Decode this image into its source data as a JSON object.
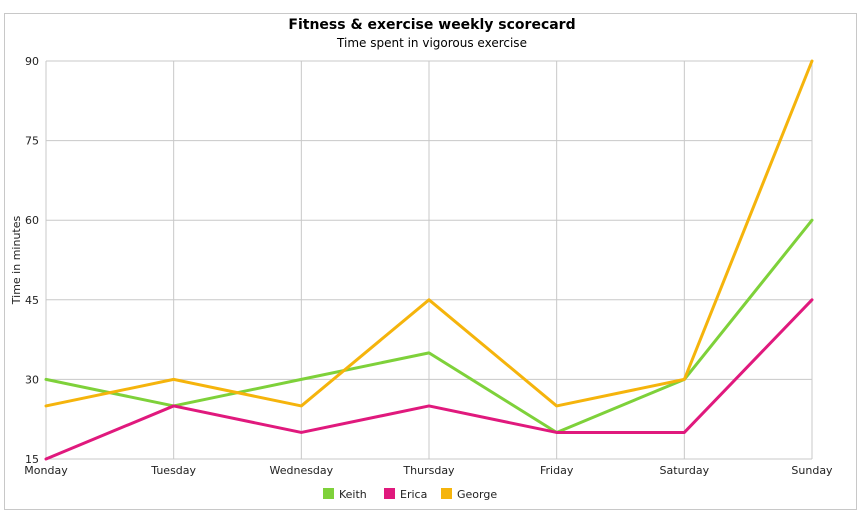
{
  "chart_data": {
    "type": "line",
    "title": "Fitness & exercise weekly scorecard",
    "subtitle": "Time spent in vigorous exercise",
    "xlabel": "",
    "ylabel": "Time in minutes",
    "categories": [
      "Monday",
      "Tuesday",
      "Wednesday",
      "Thursday",
      "Friday",
      "Saturday",
      "Sunday"
    ],
    "ylim": [
      15,
      90
    ],
    "yticks": [
      15,
      30,
      45,
      60,
      75,
      90
    ],
    "grid": true,
    "legend_position": "bottom",
    "series": [
      {
        "name": "Keith",
        "color": "#7ed13a",
        "values": [
          30,
          25,
          30,
          35,
          20,
          30,
          60
        ]
      },
      {
        "name": "Erica",
        "color": "#e0197d",
        "values": [
          15,
          25,
          20,
          25,
          20,
          20,
          45
        ]
      },
      {
        "name": "George",
        "color": "#f5b40c",
        "values": [
          25,
          30,
          25,
          45,
          25,
          30,
          90
        ]
      }
    ]
  }
}
